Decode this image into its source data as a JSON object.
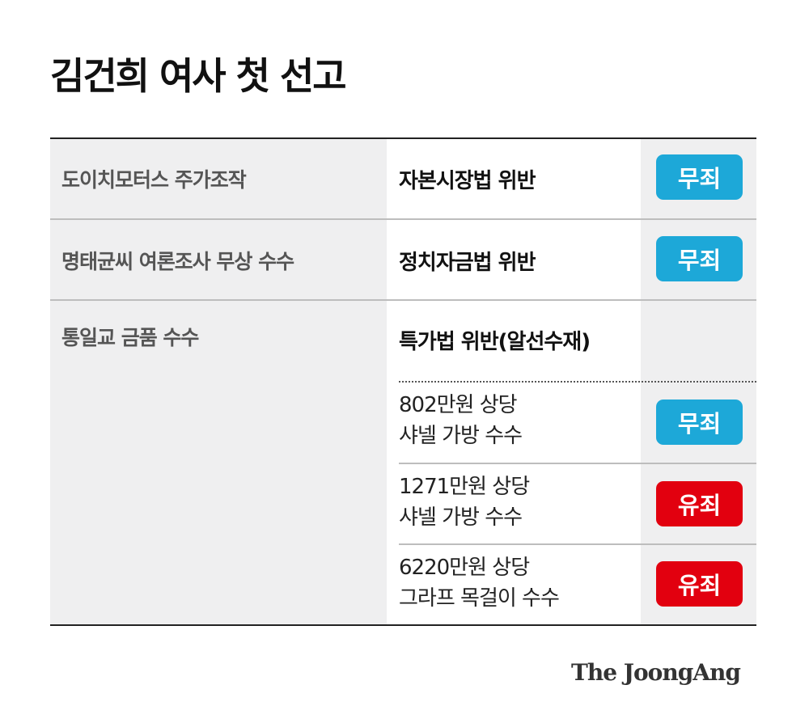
{
  "title": "김건희 여사 첫 선고",
  "colors": {
    "acquitted": "#1da8d8",
    "guilty": "#e2000f"
  },
  "rows": [
    {
      "category": "도이치모터스 주가조작",
      "law": "자본시장법 위반",
      "verdict": "무죄"
    },
    {
      "category": "명태균씨 여론조사 무상 수수",
      "law": "정치자금법 위반",
      "verdict": "무죄"
    },
    {
      "category": "통일교 금품 수수",
      "law": "특가법 위반(알선수재)",
      "items": [
        {
          "line1": "802만원 상당",
          "line2": "샤넬 가방 수수",
          "verdict": "무죄"
        },
        {
          "line1": "1271만원 상당",
          "line2": "샤넬 가방 수수",
          "verdict": "유죄"
        },
        {
          "line1": "6220만원 상당",
          "line2": "그라프 목걸이 수수",
          "verdict": "유죄"
        }
      ]
    }
  ],
  "logo": "The JoongAng"
}
